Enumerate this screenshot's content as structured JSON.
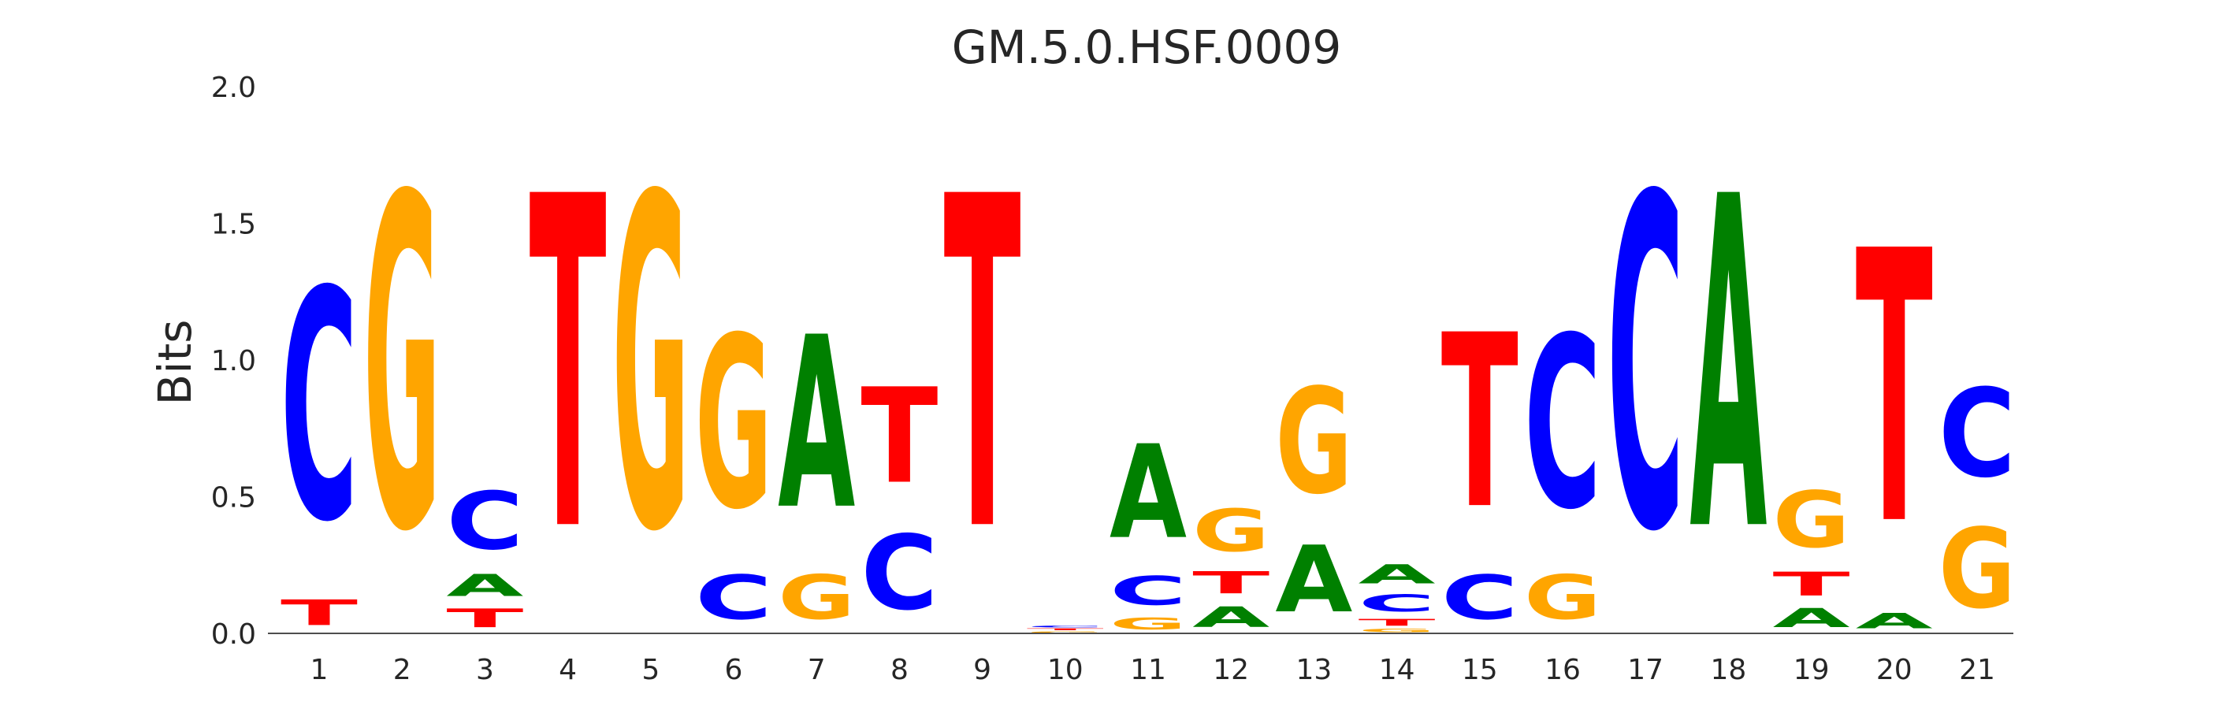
{
  "chart_data": {
    "type": "sequence-logo",
    "title": "GM.5.0.HSF.0009",
    "ylabel": "Bits",
    "xlabel": "",
    "ylim": [
      0,
      2.0
    ],
    "yticks": [
      "0.0",
      "0.5",
      "1.0",
      "1.5",
      "2.0"
    ],
    "grid": false,
    "colors": {
      "A": "#008000",
      "C": "#0000ff",
      "G": "#ffa500",
      "T": "#ff0000"
    },
    "positions": [
      {
        "label": "1",
        "stack": [
          [
            "T",
            0.15
          ],
          [
            "C",
            1.35
          ]
        ]
      },
      {
        "label": "2",
        "stack": [
          [
            "G",
            1.95
          ]
        ]
      },
      {
        "label": "3",
        "stack": [
          [
            "T",
            0.11
          ],
          [
            "A",
            0.13
          ],
          [
            "C",
            0.34
          ]
        ]
      },
      {
        "label": "4",
        "stack": [
          [
            "T",
            1.95
          ]
        ]
      },
      {
        "label": "5",
        "stack": [
          [
            "G",
            1.95
          ]
        ]
      },
      {
        "label": "6",
        "stack": [
          [
            "C",
            0.26
          ],
          [
            "G",
            1.01
          ]
        ]
      },
      {
        "label": "7",
        "stack": [
          [
            "G",
            0.26
          ],
          [
            "A",
            1.01
          ]
        ]
      },
      {
        "label": "8",
        "stack": [
          [
            "C",
            0.44
          ],
          [
            "T",
            0.56
          ]
        ]
      },
      {
        "label": "9",
        "stack": [
          [
            "T",
            1.95
          ]
        ]
      },
      {
        "label": "10",
        "stack": [
          [
            "G",
            0.01
          ],
          [
            "T",
            0.01
          ],
          [
            "C",
            0.01
          ]
        ]
      },
      {
        "label": "11",
        "stack": [
          [
            "G",
            0.07
          ],
          [
            "C",
            0.17
          ],
          [
            "A",
            0.55
          ]
        ]
      },
      {
        "label": "12",
        "stack": [
          [
            "A",
            0.12
          ],
          [
            "T",
            0.13
          ],
          [
            "G",
            0.25
          ]
        ]
      },
      {
        "label": "13",
        "stack": [
          [
            "A",
            0.39
          ],
          [
            "G",
            0.62
          ]
        ]
      },
      {
        "label": "14",
        "stack": [
          [
            "G",
            0.02
          ],
          [
            "T",
            0.04
          ],
          [
            "C",
            0.1
          ],
          [
            "A",
            0.11
          ]
        ]
      },
      {
        "label": "15",
        "stack": [
          [
            "C",
            0.26
          ],
          [
            "T",
            1.02
          ]
        ]
      },
      {
        "label": "16",
        "stack": [
          [
            "G",
            0.26
          ],
          [
            "C",
            1.01
          ]
        ]
      },
      {
        "label": "17",
        "stack": [
          [
            "C",
            1.95
          ]
        ]
      },
      {
        "label": "18",
        "stack": [
          [
            "A",
            1.95
          ]
        ]
      },
      {
        "label": "19",
        "stack": [
          [
            "A",
            0.11
          ],
          [
            "T",
            0.14
          ],
          [
            "G",
            0.33
          ]
        ]
      },
      {
        "label": "20",
        "stack": [
          [
            "A",
            0.09
          ],
          [
            "T",
            1.6
          ]
        ]
      },
      {
        "label": "21",
        "stack": [
          [
            "G",
            0.47
          ],
          [
            "C",
            0.52
          ]
        ]
      }
    ]
  }
}
